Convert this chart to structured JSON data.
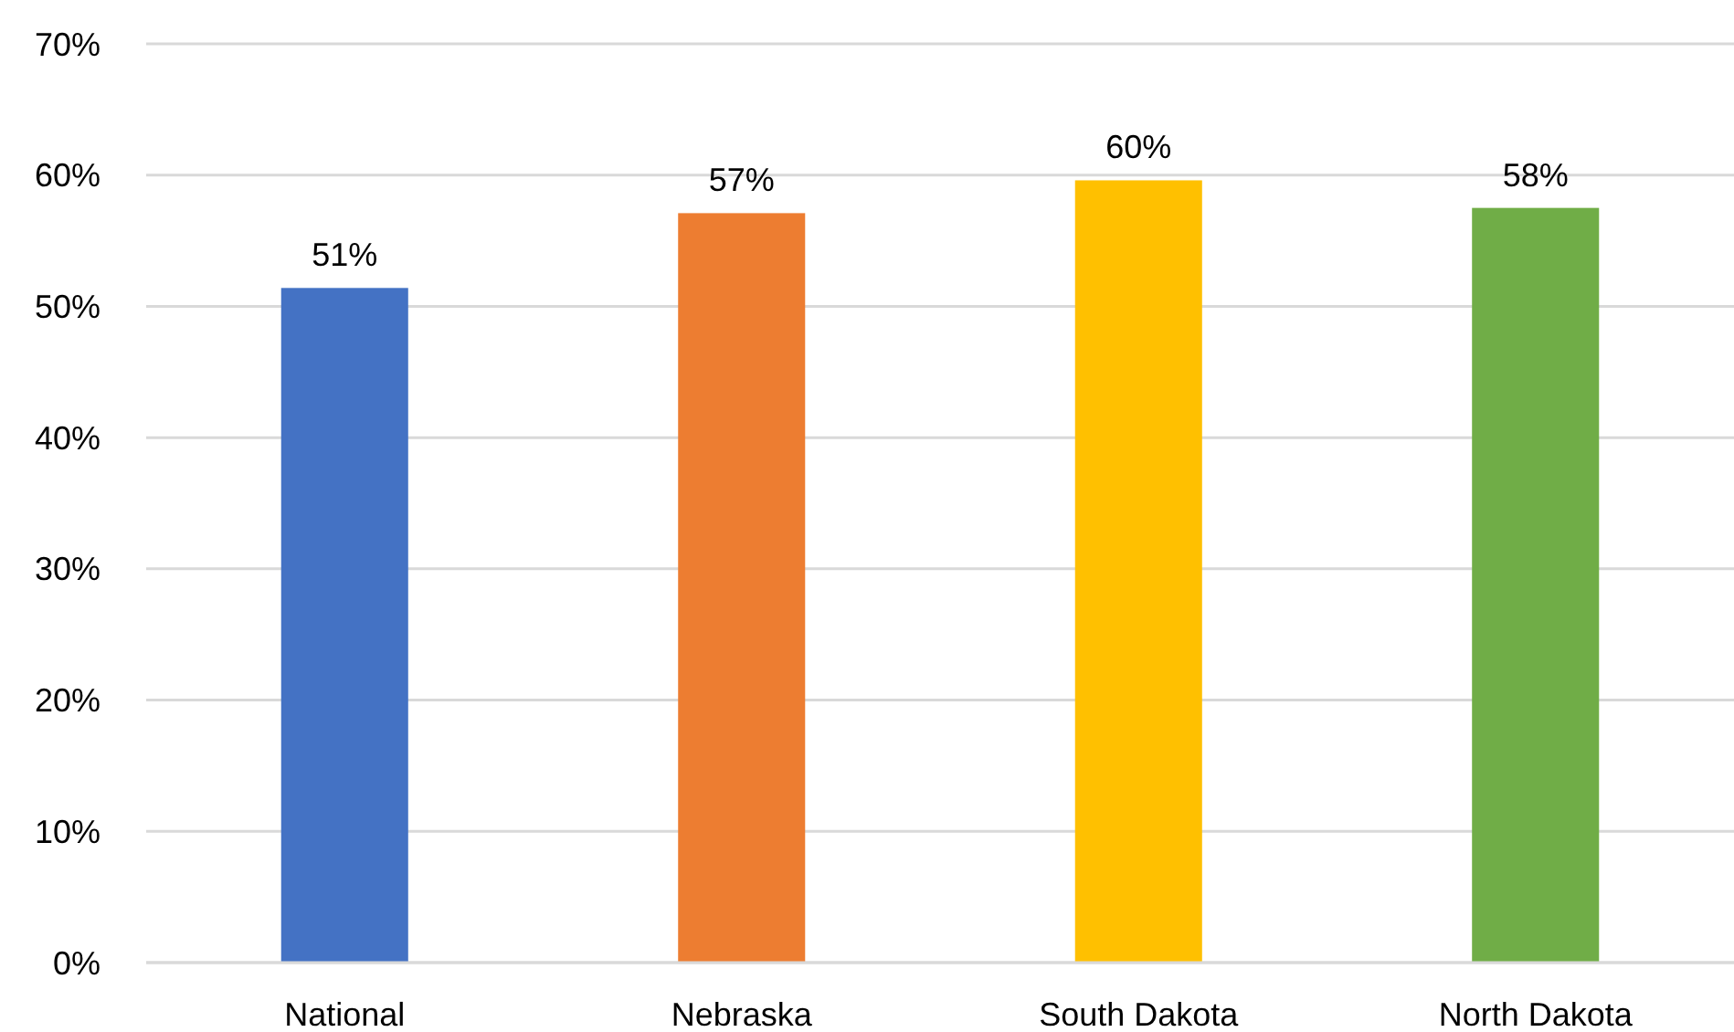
{
  "chart_data": {
    "type": "bar",
    "categories": [
      "National",
      "Nebraska",
      "South Dakota",
      "North Dakota"
    ],
    "values": [
      51.4,
      57.1,
      59.6,
      57.5
    ],
    "colors": [
      "#4472c4",
      "#ed7d31",
      "#ffc000",
      "#70ad47"
    ],
    "value_labels": [
      "51%",
      "57%",
      "60%",
      "58%"
    ],
    "ylim": [
      0,
      70
    ],
    "yticks": [
      {
        "value": 0,
        "label": "0%"
      },
      {
        "value": 10,
        "label": "10%"
      },
      {
        "value": 20,
        "label": "20%"
      },
      {
        "value": 30,
        "label": "30%"
      },
      {
        "value": 40,
        "label": "40%"
      },
      {
        "value": 50,
        "label": "50%"
      },
      {
        "value": 60,
        "label": "60%"
      },
      {
        "value": 70,
        "label": "70%"
      }
    ],
    "grid": "y"
  }
}
